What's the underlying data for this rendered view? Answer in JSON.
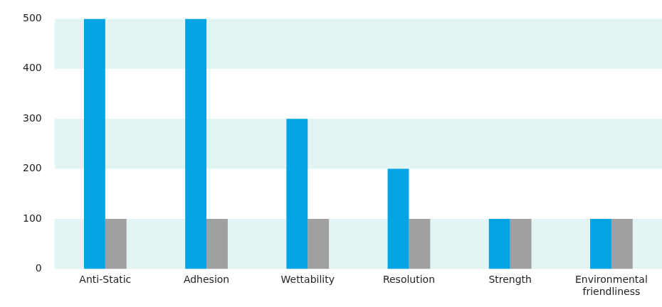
{
  "chart_data": {
    "type": "bar",
    "categories": [
      "Anti-Static",
      "Adhesion",
      "Wettability",
      "Resolution",
      "Strength",
      "Environmental friendliness"
    ],
    "series": [
      {
        "color": "#02a4e4",
        "values": [
          500,
          500,
          300,
          200,
          100,
          100
        ]
      },
      {
        "color": "#a0a0a0",
        "values": [
          100,
          100,
          100,
          100,
          100,
          100
        ]
      }
    ],
    "ylim": [
      0,
      500
    ],
    "yticks": [
      0,
      100,
      200,
      300,
      400,
      500
    ],
    "grid": true
  }
}
